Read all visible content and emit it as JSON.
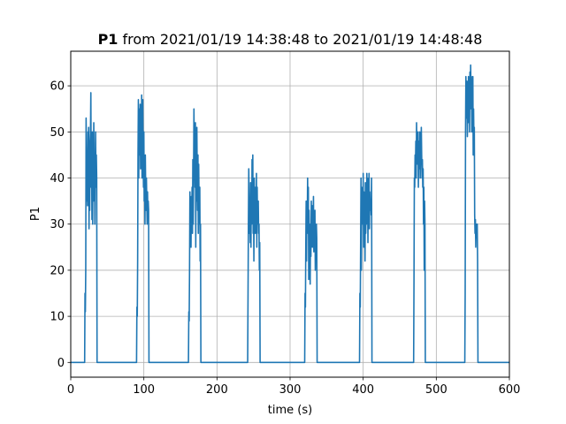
{
  "chart_data": {
    "type": "line",
    "title_bold": "P1",
    "title_rest": " from 2021/01/19 14:38:48 to 2021/01/19 14:48:48",
    "xlabel": "time (s)",
    "ylabel": "P1",
    "xlim": [
      0,
      600
    ],
    "ylim": [
      -3.2,
      67.5
    ],
    "xticks": [
      0,
      100,
      200,
      300,
      400,
      500,
      600
    ],
    "yticks": [
      0,
      10,
      20,
      30,
      40,
      50,
      60
    ],
    "grid": true,
    "line_color": "#1f77b4",
    "series": [
      {
        "x": [
          0,
          19,
          19.5,
          20,
          20.5,
          21,
          21.5,
          22,
          22.5,
          23,
          23.5,
          24,
          24.5,
          25,
          25.5,
          26,
          26.5,
          27,
          27.5,
          28,
          28.5,
          29,
          29.5,
          30,
          30.5,
          31,
          31.5,
          32,
          32.5,
          33,
          33.5,
          34,
          34.5,
          35,
          35.5,
          36,
          90,
          90.5,
          91,
          91.5,
          92,
          92.5,
          93,
          93.5,
          94,
          94.5,
          95,
          95.5,
          96,
          96.5,
          97,
          97.5,
          98,
          98.5,
          99,
          99.5,
          100,
          100.5,
          101,
          101.5,
          102,
          102.5,
          103,
          103.5,
          104,
          104.5,
          105,
          105.5,
          106,
          106.5,
          107,
          161,
          161.5,
          162,
          162.5,
          163,
          163.5,
          164,
          164.5,
          165,
          165.5,
          166,
          166.5,
          167,
          167.5,
          168,
          168.5,
          169,
          169.5,
          170,
          170.5,
          171,
          171.5,
          172,
          172.5,
          173,
          173.5,
          174,
          174.5,
          175,
          175.5,
          176,
          176.5,
          177,
          177.5,
          178,
          242,
          242.5,
          243,
          243.5,
          244,
          244.5,
          245,
          245.5,
          246,
          246.5,
          247,
          247.5,
          248,
          248.5,
          249,
          249.5,
          250,
          250.5,
          251,
          251.5,
          252,
          252.5,
          253,
          253.5,
          254,
          254.5,
          255,
          255.5,
          256,
          256.5,
          257,
          257.5,
          258,
          258.5,
          259,
          320,
          320.5,
          321,
          321.5,
          322,
          322.5,
          323,
          323.5,
          324,
          324.5,
          325,
          325.5,
          326,
          326.5,
          327,
          327.5,
          328,
          328.5,
          329,
          329.5,
          330,
          330.5,
          331,
          331.5,
          332,
          332.5,
          333,
          333.5,
          334,
          334.5,
          335,
          335.5,
          336,
          336.5,
          337,
          395,
          395.5,
          396,
          396.5,
          397,
          397.5,
          398,
          398.5,
          399,
          399.5,
          400,
          400.5,
          401,
          401.5,
          402,
          402.5,
          403,
          403.5,
          404,
          404.5,
          405,
          405.5,
          406,
          406.5,
          407,
          407.5,
          408,
          408.5,
          409,
          409.5,
          410,
          410.5,
          411,
          411.5,
          412,
          469,
          469.5,
          470,
          470.5,
          471,
          471.5,
          472,
          472.5,
          473,
          473.5,
          474,
          474.5,
          475,
          475.5,
          476,
          476.5,
          477,
          477.5,
          478,
          478.5,
          479,
          479.5,
          480,
          480.5,
          481,
          481.5,
          482,
          482.5,
          483,
          483.5,
          484,
          484.5,
          485,
          539,
          539.5,
          540,
          540.5,
          541,
          541.5,
          542,
          542.5,
          543,
          543.5,
          544,
          544.5,
          545,
          545.5,
          546,
          546.5,
          547,
          547.5,
          548,
          548.5,
          549,
          549.5,
          550,
          550.5,
          551,
          551.5,
          552,
          552.5,
          553,
          553.5,
          554,
          554.5,
          555,
          555.5,
          556,
          556.5,
          557,
          600
        ],
        "y": [
          0,
          0,
          15,
          11,
          20,
          53,
          45,
          35,
          40,
          34,
          50,
          44,
          51,
          29,
          45,
          33,
          48,
          50,
          58.5,
          38,
          45,
          31,
          50,
          30,
          47,
          35,
          52,
          40,
          45,
          30,
          42,
          50,
          38,
          45,
          40,
          0,
          0,
          12,
          10,
          22,
          45,
          57,
          40,
          55,
          45,
          50,
          56,
          42,
          53,
          47,
          58,
          40,
          52,
          57,
          45,
          38,
          50,
          35,
          43,
          30,
          45,
          38,
          33,
          40,
          35,
          30,
          37,
          32,
          35,
          33,
          0,
          0,
          11,
          9,
          20,
          37,
          30,
          35,
          25,
          36,
          33,
          38,
          28,
          44,
          30,
          40,
          55,
          45,
          50,
          38,
          52,
          25,
          46,
          35,
          51,
          40,
          33,
          45,
          28,
          43,
          35,
          30,
          38,
          22,
          30,
          0,
          0,
          15,
          30,
          42,
          35,
          28,
          33,
          26,
          39,
          25,
          38,
          30,
          44,
          40,
          45,
          28,
          36,
          22,
          40,
          33,
          38,
          28,
          37,
          29,
          41,
          25,
          38,
          30,
          34,
          35,
          28,
          30,
          20,
          26,
          0,
          0,
          15,
          12,
          25,
          35,
          22,
          34,
          30,
          40,
          28,
          38,
          18,
          33,
          27,
          30,
          17,
          29,
          23,
          35,
          27,
          34,
          25,
          34,
          30,
          36,
          24,
          30,
          25,
          33,
          20,
          28,
          26,
          30,
          27,
          0,
          0,
          15,
          12,
          25,
          40,
          20,
          35,
          30,
          38,
          30,
          41,
          25,
          37,
          30,
          36,
          22,
          39,
          28,
          35,
          30,
          41,
          32,
          40,
          26,
          38,
          30,
          41,
          29,
          37,
          34,
          33,
          35,
          32,
          40,
          0,
          0,
          18,
          40,
          38,
          45,
          42,
          48,
          40,
          52,
          44,
          47,
          43,
          50,
          38,
          48,
          45,
          42,
          50,
          40,
          46,
          43,
          51,
          45,
          40,
          44,
          38,
          42,
          30,
          38,
          20,
          35,
          30,
          0,
          0,
          15,
          50,
          62,
          58,
          53,
          61,
          49,
          57,
          52,
          62,
          55,
          60,
          50,
          63,
          55,
          64.5,
          58,
          62,
          50,
          60,
          53,
          62,
          45,
          55,
          48,
          51,
          32,
          28,
          31,
          25,
          30,
          27,
          28,
          30,
          22,
          0,
          0
        ]
      }
    ]
  }
}
